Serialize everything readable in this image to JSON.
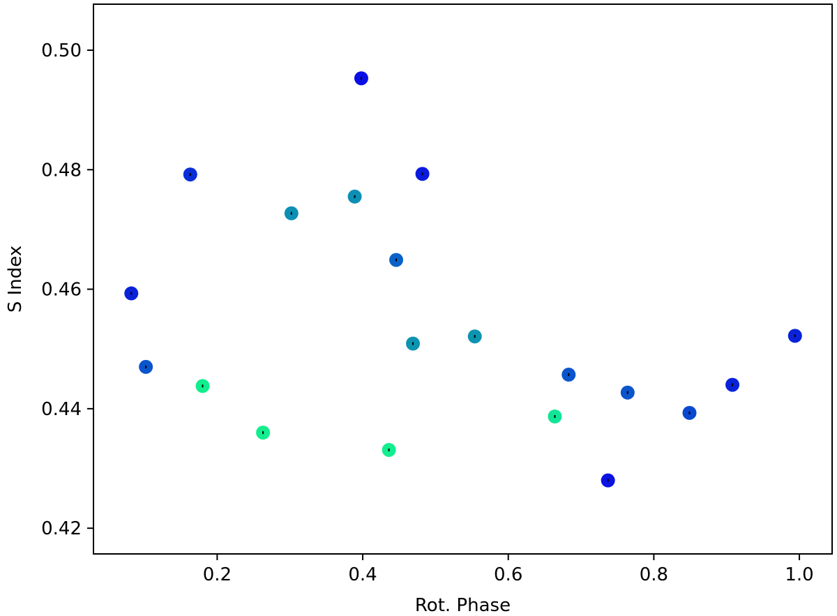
{
  "chart_data": {
    "type": "scatter",
    "title": "",
    "xlabel": "Rot. Phase",
    "ylabel": "S Index",
    "xlim": [
      0.03,
      1.045
    ],
    "ylim": [
      0.4157,
      0.5077
    ],
    "xticks": [
      0.2,
      0.4,
      0.6,
      0.8,
      1.0
    ],
    "xtick_labels": [
      "0.2",
      "0.4",
      "0.6",
      "0.8",
      "1.0"
    ],
    "yticks": [
      0.42,
      0.44,
      0.46,
      0.48,
      0.5
    ],
    "ytick_labels": [
      "0.42",
      "0.44",
      "0.46",
      "0.48",
      "0.50"
    ],
    "grid": false,
    "legend": "none",
    "error_bar_color": "#000000",
    "points": [
      {
        "x": 0.082,
        "y": 0.4593,
        "color": "#0a22d8"
      },
      {
        "x": 0.102,
        "y": 0.447,
        "color": "#0a55cc"
      },
      {
        "x": 0.163,
        "y": 0.4792,
        "color": "#0a2ed8"
      },
      {
        "x": 0.18,
        "y": 0.4438,
        "color": "#12ee8e"
      },
      {
        "x": 0.263,
        "y": 0.436,
        "color": "#12ee8e"
      },
      {
        "x": 0.302,
        "y": 0.4727,
        "color": "#0d8fb4"
      },
      {
        "x": 0.389,
        "y": 0.4755,
        "color": "#0d8fb4"
      },
      {
        "x": 0.398,
        "y": 0.4953,
        "color": "#0a0ee6"
      },
      {
        "x": 0.436,
        "y": 0.4331,
        "color": "#12ee8e"
      },
      {
        "x": 0.446,
        "y": 0.4649,
        "color": "#0a62c8"
      },
      {
        "x": 0.469,
        "y": 0.4509,
        "color": "#0d94b0"
      },
      {
        "x": 0.482,
        "y": 0.4793,
        "color": "#0a1ade"
      },
      {
        "x": 0.554,
        "y": 0.4521,
        "color": "#0d94b0"
      },
      {
        "x": 0.664,
        "y": 0.4387,
        "color": "#12e696"
      },
      {
        "x": 0.683,
        "y": 0.4457,
        "color": "#0a55cc"
      },
      {
        "x": 0.737,
        "y": 0.428,
        "color": "#0a12e4"
      },
      {
        "x": 0.764,
        "y": 0.4427,
        "color": "#0a55cc"
      },
      {
        "x": 0.849,
        "y": 0.4393,
        "color": "#0a48d0"
      },
      {
        "x": 0.908,
        "y": 0.444,
        "color": "#0a22d8"
      },
      {
        "x": 0.994,
        "y": 0.4522,
        "color": "#0a22d8"
      }
    ]
  }
}
